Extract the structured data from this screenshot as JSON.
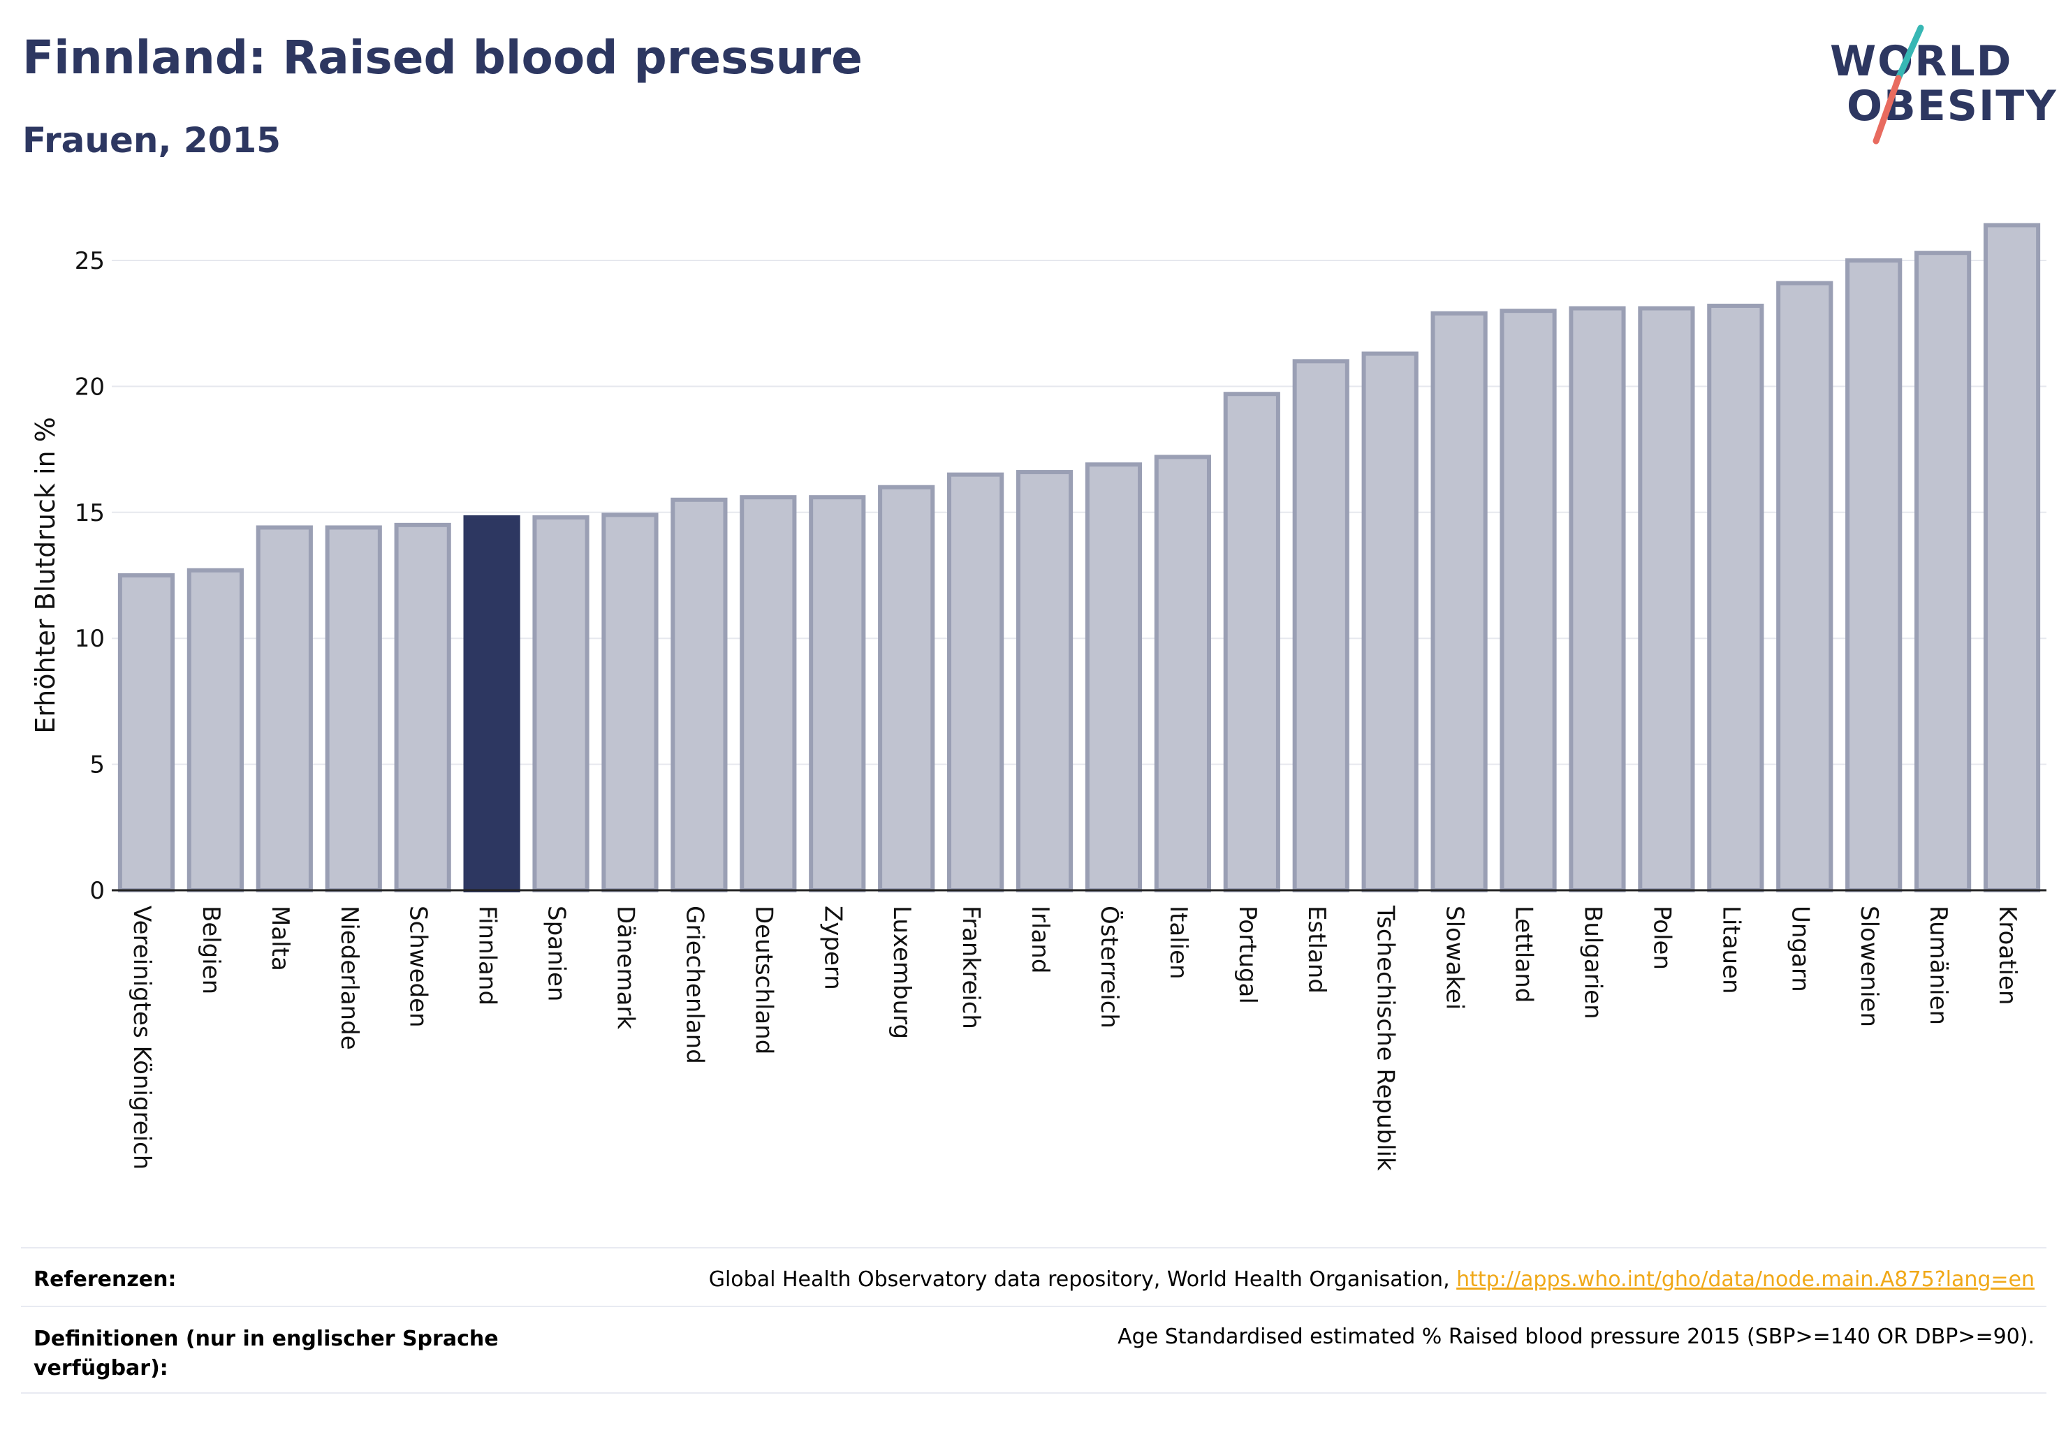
{
  "header": {
    "title": "Finnland: Raised blood pressure",
    "subtitle": "Frauen, 2015"
  },
  "logo": {
    "line1": "WORLD",
    "line2": "OBESITY"
  },
  "colors": {
    "highlight": "#2d3761",
    "bar_fill": "#c0c3d0",
    "bar_stroke": "#9a9fb4",
    "logo_slash_teal": "#37b7b4",
    "logo_slash_red": "#e86b5f",
    "link": "#f0a818"
  },
  "chart_data": {
    "type": "bar",
    "ylabel": "Erhöhter Blutdruck in %",
    "xlabel": "",
    "ylim": [
      0,
      27
    ],
    "yticks": [
      0,
      5,
      10,
      15,
      20,
      25
    ],
    "grid": true,
    "highlight": "Finnland",
    "categories": [
      "Vereinigtes Königreich",
      "Belgien",
      "Malta",
      "Niederlande",
      "Schweden",
      "Finnland",
      "Spanien",
      "Dänemark",
      "Griechenland",
      "Deutschland",
      "Zypern",
      "Luxemburg",
      "Frankreich",
      "Irland",
      "Österreich",
      "Italien",
      "Portugal",
      "Estland",
      "Tschechische Republik",
      "Slowakei",
      "Lettland",
      "Bulgarien",
      "Polen",
      "Litauen",
      "Ungarn",
      "Slowenien",
      "Rumänien",
      "Kroatien"
    ],
    "values": [
      12.5,
      12.7,
      14.4,
      14.4,
      14.5,
      14.8,
      14.8,
      14.9,
      15.5,
      15.6,
      15.6,
      16.0,
      16.5,
      16.6,
      16.9,
      17.2,
      19.7,
      21.0,
      21.3,
      22.9,
      23.0,
      23.1,
      23.1,
      23.2,
      24.1,
      25.0,
      25.3,
      26.4
    ]
  },
  "footer": {
    "ref_label": "Referenzen:",
    "ref_text": "Global Health Observatory data repository, World Health Organisation, ",
    "ref_link": "http://apps.who.int/gho/data/node.main.A875?lang=en",
    "def_label": "Definitionen (nur in englischer Sprache verfügbar):",
    "def_text": "Age Standardised estimated % Raised blood pressure 2015 (SBP>=140 OR DBP>=90)."
  }
}
